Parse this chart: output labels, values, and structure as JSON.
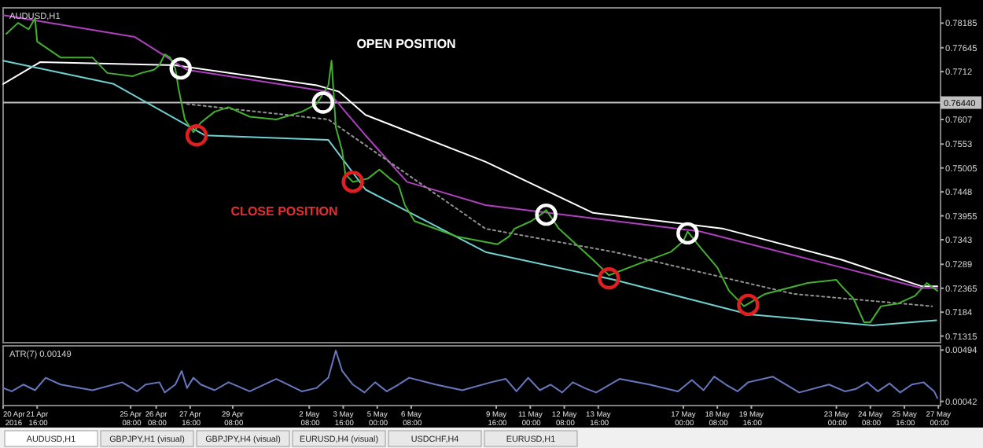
{
  "chart_data": [
    {
      "type": "line",
      "title": "AUDUSD,H1",
      "annotations": [
        "OPEN POSITION",
        "CLOSE POSITION"
      ],
      "xlim": [
        "2016-04-20T08:00",
        "2016-05-27T02:00"
      ],
      "ylim": [
        0.7117,
        0.7852
      ],
      "yticks": [
        0.78185,
        0.77645,
        0.7712,
        0.7607,
        0.7553,
        0.75005,
        0.7448,
        0.73955,
        0.7343,
        0.7289,
        0.72365,
        0.7184,
        0.71315
      ],
      "tick_labels": "y",
      "line_style": "solid",
      "marker": "none",
      "ref_lines": [
        {
          "axis": "y",
          "value": 0.7644,
          "label": "0.76440",
          "color": "#c0c0c0"
        }
      ],
      "series": [
        {
          "color": "#ffffff",
          "x": [
            "2016-04-20T08:00",
            "2016-04-21T19:00",
            "2016-04-27T02:00",
            "2016-05-02T15:00",
            "2016-05-03T12:00",
            "2016-05-04T13:00",
            "2016-05-09T06:00",
            "2016-05-13T11:00",
            "2016-05-18T14:00",
            "2016-05-23T05:00",
            "2016-05-26T08:00",
            "2016-05-26T23:00"
          ],
          "values": [
            0.7685,
            0.7733,
            0.7726,
            0.7682,
            0.7668,
            0.7617,
            0.7514,
            0.7402,
            0.7367,
            0.7299,
            0.7241,
            0.7241
          ]
        },
        {
          "color": "#b040c0",
          "x": [
            "2016-04-20T08:00",
            "2016-04-25T12:00",
            "2016-04-27T13:00",
            "2016-05-03T02:00",
            "2016-05-04T13:00",
            "2016-05-06T04:00",
            "2016-05-09T06:00",
            "2016-05-11T17:00",
            "2016-05-17T16:00",
            "2016-05-23T05:00",
            "2016-05-26T08:00",
            "2016-05-26T23:00"
          ],
          "values": [
            0.7836,
            0.7788,
            0.7716,
            0.7668,
            0.7572,
            0.747,
            0.7419,
            0.7402,
            0.7361,
            0.7282,
            0.7237,
            0.7237
          ]
        },
        {
          "color": "#70d0d0",
          "x": [
            "2016-04-20T08:00",
            "2016-04-24T16:00",
            "2016-04-28T06:00",
            "2016-05-03T02:00",
            "2016-05-04T13:00",
            "2016-05-09T06:00",
            "2016-05-14T07:00",
            "2016-05-19T14:00",
            "2016-05-24T10:00",
            "2016-05-26T22:00"
          ],
          "values": [
            0.7736,
            0.7685,
            0.7572,
            0.7562,
            0.7453,
            0.7316,
            0.7255,
            0.7179,
            0.7155,
            0.7166
          ]
        },
        {
          "color": "#909090",
          "line_style": "dotted",
          "x": [
            "2016-04-27T13:00",
            "2016-05-03T02:00",
            "2016-05-09T06:00",
            "2016-05-14T07:00",
            "2016-05-21T08:00",
            "2016-05-26T18:00"
          ],
          "values": [
            0.7641,
            0.7607,
            0.7367,
            0.7316,
            0.7224,
            0.7197
          ]
        },
        {
          "color": "#44b030",
          "x": [
            "2016-04-20T11:00",
            "2016-04-20T22:00",
            "2016-04-21T08:00",
            "2016-04-21T14:00",
            "2016-04-21T16:00",
            "2016-04-22T14:00",
            "2016-04-23T20:00",
            "2016-04-24T10:00",
            "2016-04-25T10:00",
            "2016-04-25T18:00",
            "2016-04-26T06:00",
            "2016-04-26T11:00",
            "2016-04-26T16:00",
            "2016-04-26T21:00",
            "2016-04-27T02:00",
            "2016-04-27T05:00",
            "2016-04-27T11:00",
            "2016-04-27T19:00",
            "2016-04-28T02:00",
            "2016-04-28T15:00",
            "2016-04-29T04:00",
            "2016-04-30T00:00",
            "2016-05-01T01:00",
            "2016-05-02T01:00",
            "2016-05-02T15:00",
            "2016-05-03T02:00",
            "2016-05-03T05:00",
            "2016-05-03T09:00",
            "2016-05-03T15:00",
            "2016-05-03T18:00",
            "2016-05-04T01:00",
            "2016-05-04T15:00",
            "2016-05-05T02:00",
            "2016-05-05T12:00",
            "2016-05-05T20:00",
            "2016-05-06T02:00",
            "2016-05-06T11:00",
            "2016-05-08T03:00",
            "2016-05-09T17:00",
            "2016-05-10T04:00",
            "2016-05-10T09:00",
            "2016-05-11T01:00",
            "2016-05-11T12:00",
            "2016-05-11T15:00",
            "2016-05-12T03:00",
            "2016-05-12T19:00",
            "2016-05-13T11:00",
            "2016-05-14T02:00",
            "2016-05-15T08:00",
            "2016-05-16T12:00",
            "2016-05-17T00:00",
            "2016-05-17T04:00",
            "2016-05-17T16:00",
            "2016-05-18T08:00",
            "2016-05-18T19:00",
            "2016-05-19T09:00",
            "2016-05-20T05:00",
            "2016-05-21T21:00",
            "2016-05-23T00:00",
            "2016-05-23T05:00",
            "2016-05-23T16:00",
            "2016-05-24T02:00",
            "2016-05-24T08:00",
            "2016-05-24T18:00",
            "2016-05-25T10:00",
            "2016-05-26T02:00",
            "2016-05-26T13:00",
            "2016-05-26T23:00"
          ],
          "values": [
            0.7795,
            0.7819,
            0.7805,
            0.7829,
            0.7778,
            0.7743,
            0.7743,
            0.7709,
            0.7702,
            0.7709,
            0.7716,
            0.7726,
            0.775,
            0.7743,
            0.7719,
            0.7675,
            0.7607,
            0.7579,
            0.76,
            0.7624,
            0.7634,
            0.7613,
            0.7607,
            0.7624,
            0.7641,
            0.7682,
            0.7736,
            0.759,
            0.7538,
            0.7487,
            0.747,
            0.7477,
            0.7497,
            0.7477,
            0.7463,
            0.7419,
            0.7384,
            0.735,
            0.7333,
            0.735,
            0.7367,
            0.7384,
            0.7402,
            0.7408,
            0.7367,
            0.7333,
            0.7299,
            0.7265,
            0.7292,
            0.7316,
            0.734,
            0.7361,
            0.7326,
            0.7282,
            0.7231,
            0.7197,
            0.7224,
            0.7248,
            0.7255,
            0.7241,
            0.7214,
            0.7162,
            0.7162,
            0.7197,
            0.7203,
            0.722,
            0.7248,
            0.7231
          ]
        },
        {
          "type": "scatter",
          "marker": "circle",
          "color": "#ffffff",
          "x": [
            "2016-04-27T07:00",
            "2016-05-02T21:00",
            "2016-05-11T15:00",
            "2016-05-17T04:00"
          ],
          "values": [
            0.7719,
            0.7644,
            0.7398,
            0.7357
          ]
        },
        {
          "type": "scatter",
          "marker": "circle",
          "color": "#e02020",
          "x": [
            "2016-04-27T22:00",
            "2016-05-04T01:00",
            "2016-05-14T02:00",
            "2016-05-19T13:00"
          ],
          "values": [
            0.7572,
            0.747,
            0.7258,
            0.72
          ]
        }
      ]
    },
    {
      "type": "line",
      "title": "ATR(7) 0.00149",
      "annotations": [
        "AUDUSD,H1",
        "GBPJPY,H1 (visual)",
        "GBPJPY,H4 (visual)",
        "EURUSD,H4 (visual)",
        "USDCHF,H4",
        "EURUSD,H1"
      ],
      "xlim": [
        "2016-04-20T08:00",
        "2016-05-27T02:00"
      ],
      "ylim": [
        5e-05,
        0.00531
      ],
      "yticks": [
        0.00494,
        0.00042
      ],
      "xticks": [
        {
          "value": "2016-04-20T08:00",
          "label": "20 Apr 2016"
        },
        {
          "value": "2016-04-21T16:00",
          "label": "21 Apr 16:00"
        },
        {
          "value": "2016-04-25T08:00",
          "label": "25 Apr 08:00"
        },
        {
          "value": "2016-04-26T08:00",
          "label": "26 Apr 08:00"
        },
        {
          "value": "2016-04-27T16:00",
          "label": "27 Apr 16:00"
        },
        {
          "value": "2016-04-29T08:00",
          "label": "29 Apr 08:00"
        },
        {
          "value": "2016-05-02T08:00",
          "label": "2 May 08:00"
        },
        {
          "value": "2016-05-03T16:00",
          "label": "3 May 16:00"
        },
        {
          "value": "2016-05-05T00:00",
          "label": "5 May 00:00"
        },
        {
          "value": "2016-05-06T08:00",
          "label": "6 May 08:00"
        },
        {
          "value": "2016-05-09T16:00",
          "label": "9 May 16:00"
        },
        {
          "value": "2016-05-11T00:00",
          "label": "11 May 00:00"
        },
        {
          "value": "2016-05-12T08:00",
          "label": "12 May 08:00"
        },
        {
          "value": "2016-05-13T16:00",
          "label": "13 May 16:00"
        },
        {
          "value": "2016-05-17T00:00",
          "label": "17 May 00:00"
        },
        {
          "value": "2016-05-18T08:00",
          "label": "18 May 08:00"
        },
        {
          "value": "2016-05-19T16:00",
          "label": "19 May 16:00"
        },
        {
          "value": "2016-05-23T00:00",
          "label": "23 May 00:00"
        },
        {
          "value": "2016-05-24T08:00",
          "label": "24 May 08:00"
        },
        {
          "value": "2016-05-25T16:00",
          "label": "25 May 16:00"
        },
        {
          "value": "2016-05-27T00:00",
          "label": "27 May 00:00"
        }
      ],
      "marker": "none",
      "line_style": "solid",
      "series": [
        {
          "color": "#6878c0",
          "x": [
            "2016-04-20T08:00",
            "2016-04-20T16:00",
            "2016-04-21T03:00",
            "2016-04-21T14:00",
            "2016-04-22T00:00",
            "2016-04-22T14:00",
            "2016-04-23T20:00",
            "2016-04-25T00:00",
            "2016-04-25T14:00",
            "2016-04-25T22:00",
            "2016-04-26T11:00",
            "2016-04-26T16:00",
            "2016-04-27T02:00",
            "2016-04-27T08:00",
            "2016-04-27T13:00",
            "2016-04-27T19:00",
            "2016-04-28T02:00",
            "2016-04-28T15:00",
            "2016-04-29T04:00",
            "2016-04-30T00:00",
            "2016-05-01T01:00",
            "2016-05-02T01:00",
            "2016-05-02T15:00",
            "2016-05-03T02:00",
            "2016-05-03T09:00",
            "2016-05-03T15:00",
            "2016-05-04T01:00",
            "2016-05-04T12:00",
            "2016-05-04T22:00",
            "2016-05-05T09:00",
            "2016-05-05T20:00",
            "2016-05-06T06:00",
            "2016-05-07T07:00",
            "2016-05-08T08:00",
            "2016-05-09T11:00",
            "2016-05-10T01:00",
            "2016-05-10T11:00",
            "2016-05-10T22:00",
            "2016-05-11T09:00",
            "2016-05-11T19:00",
            "2016-05-12T06:00",
            "2016-05-12T16:00",
            "2016-05-13T03:00",
            "2016-05-13T14:00",
            "2016-05-14T12:00",
            "2016-05-15T16:00",
            "2016-05-16T19:00",
            "2016-05-17T08:00",
            "2016-05-17T19:00",
            "2016-05-18T05:00",
            "2016-05-18T16:00",
            "2016-05-19T03:00",
            "2016-05-19T13:00",
            "2016-05-20T12:00",
            "2016-05-21T13:00",
            "2016-05-22T17:00",
            "2016-05-23T08:00",
            "2016-05-23T18:00",
            "2016-05-24T05:00",
            "2016-05-24T15:00",
            "2016-05-25T02:00",
            "2016-05-25T12:00",
            "2016-05-25T23:00",
            "2016-05-26T10:00",
            "2016-05-26T20:00",
            "2016-05-26T23:00"
          ],
          "values": [
            0.0016,
            0.0013,
            0.0019,
            0.0014,
            0.0025,
            0.0019,
            0.0014,
            0.0021,
            0.0013,
            0.0019,
            0.0021,
            0.0012,
            0.0019,
            0.0031,
            0.0016,
            0.0025,
            0.0019,
            0.0014,
            0.0021,
            0.0013,
            0.0024,
            0.0013,
            0.0016,
            0.0025,
            0.0049,
            0.0031,
            0.0019,
            0.0012,
            0.0021,
            0.0013,
            0.0019,
            0.0025,
            0.0019,
            0.0014,
            0.0021,
            0.0024,
            0.0013,
            0.0025,
            0.0014,
            0.0019,
            0.0012,
            0.0021,
            0.0016,
            0.0012,
            0.0024,
            0.0019,
            0.0013,
            0.0023,
            0.0014,
            0.0026,
            0.0019,
            0.0013,
            0.0021,
            0.0026,
            0.0012,
            0.0019,
            0.0013,
            0.0015,
            0.0021,
            0.0013,
            0.002,
            0.0012,
            0.0019,
            0.0021,
            0.0013,
            0.0007
          ]
        }
      ]
    }
  ]
}
